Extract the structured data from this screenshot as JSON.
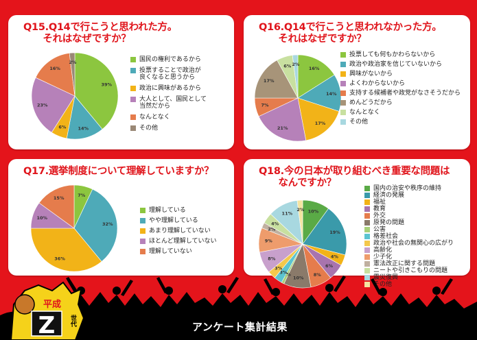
{
  "charts": [
    {
      "title": "Q15.Q14で行こうと思われた方。\n　　それはなぜですか？",
      "chart_data": {
        "type": "pie",
        "categories": [
          "国民の権利であるから",
          "投票することで政治が良くなると思うから",
          "政治に興味があるから",
          "大人として、国民として当然だから",
          "なんとなく",
          "その他"
        ],
        "legend_labels": [
          "国民の権利であるから",
          "投票することで政治が\n良くなると思うから",
          "政治に興味があるから",
          "大人として、国民として\n当然だから",
          "なんとなく",
          "その他"
        ],
        "values": [
          39,
          14,
          6,
          23,
          16,
          2
        ],
        "colors": [
          "#8cc63f",
          "#4eaab8",
          "#f2b318",
          "#b681b9",
          "#e57c4c",
          "#9a8876"
        ]
      }
    },
    {
      "title": "Q16.Q14で行こうと思われなかった方。\n　　それはなぜですか？",
      "chart_data": {
        "type": "pie",
        "categories": [
          "投票しても何もかわらないから",
          "政治や政治家を信じていないから",
          "興味がないから",
          "よくわからないから",
          "支持する候補者や政党がなさそうだから",
          "めんどうだから",
          "なんとなく",
          "その他"
        ],
        "legend_labels": [
          "投票しても何もかわらないから",
          "政治や政治家を信じていないから",
          "興味がないから",
          "よくわからないから",
          "支持する候補者や政党がなさそうだから",
          "めんどうだから",
          "なんとなく",
          "その他"
        ],
        "values": [
          16,
          14,
          17,
          21,
          7,
          17,
          6,
          2
        ],
        "colors": [
          "#8cc63f",
          "#4eaab8",
          "#f2b318",
          "#b681b9",
          "#e57c4c",
          "#a79479",
          "#c8e0a0",
          "#a8d8e0"
        ]
      }
    },
    {
      "title": "Q17.選挙制度について理解していますか？",
      "chart_data": {
        "type": "pie",
        "categories": [
          "理解している",
          "やや理解している",
          "あまり理解していない",
          "ほとんど理解していない",
          "理解していない"
        ],
        "legend_labels": [
          "理解している",
          "やや理解している",
          "あまり理解していない",
          "ほとんど理解していない",
          "理解していない"
        ],
        "values": [
          7,
          32,
          36,
          10,
          15
        ],
        "colors": [
          "#8cc63f",
          "#4eaab8",
          "#f2b318",
          "#b681b9",
          "#e57c4c"
        ]
      }
    },
    {
      "title": "Q18.今の日本が取り組むべき重要な問題は\n　　なんですか？",
      "chart_data": {
        "type": "pie",
        "categories": [
          "国内の治安や秩序の維持",
          "経済の発展",
          "福祉",
          "教育",
          "外交",
          "原発の問題",
          "公害",
          "格差社会",
          "政治や社会の無関心の広がり",
          "高齢化",
          "少子化",
          "憲法改正に関する問題",
          "ニートや引きこもりの問題",
          "震災復興",
          "その他"
        ],
        "legend_labels": [
          "国内の治安や秩序の維持",
          "経済の発展",
          "福祉",
          "教育",
          "外交",
          "原発の問題",
          "公害",
          "格差社会",
          "政治や社会の無関心の広がり",
          "高齢化",
          "少子化",
          "憲法改正に関する問題",
          "ニートや引きこもりの問題",
          "震災復興",
          "その他"
        ],
        "values": [
          10,
          19,
          4,
          6,
          8,
          10,
          1,
          3,
          3,
          8,
          9,
          2,
          4,
          11,
          2
        ],
        "colors": [
          "#5aaa46",
          "#3a9aaa",
          "#f2b318",
          "#a874ae",
          "#e57c4c",
          "#8a7a6a",
          "#a8d078",
          "#5cc4d0",
          "#f4c84c",
          "#c8a0cc",
          "#ee9c6c",
          "#c0b0a0",
          "#c8e0a0",
          "#a8d8e0",
          "#f4e4a0"
        ]
      }
    }
  ],
  "footer": {
    "title": "アンケート集計結果",
    "badge_top": "平成",
    "badge_letter": "Z",
    "badge_side": "世代"
  }
}
